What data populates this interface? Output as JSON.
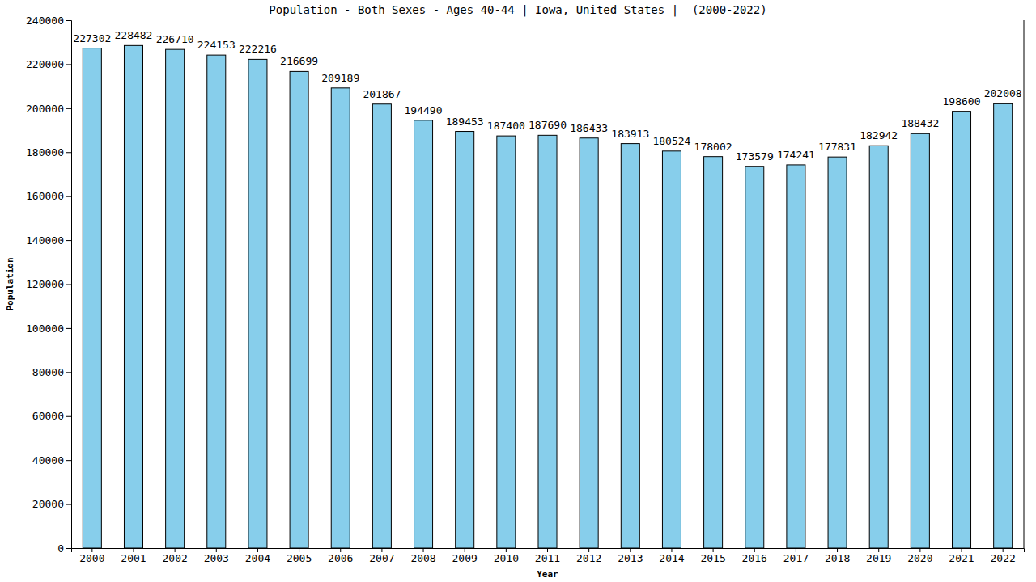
{
  "chart_data": {
    "type": "bar",
    "title": "Population - Both Sexes - Ages 40-44 | Iowa, United States |  (2000-2022)",
    "x_label": "Year",
    "y_label": "Population",
    "categories": [
      "2000",
      "2001",
      "2002",
      "2003",
      "2004",
      "2005",
      "2006",
      "2007",
      "2008",
      "2009",
      "2010",
      "2011",
      "2012",
      "2013",
      "2014",
      "2015",
      "2016",
      "2017",
      "2018",
      "2019",
      "2020",
      "2021",
      "2022"
    ],
    "values": [
      227302,
      228482,
      226710,
      224153,
      222216,
      216699,
      209189,
      201867,
      194490,
      189453,
      187400,
      187690,
      186433,
      183913,
      180524,
      178002,
      173579,
      174241,
      177831,
      182942,
      188432,
      198600,
      202008
    ],
    "color": "#87ceeb",
    "ylim": [
      0,
      240000
    ],
    "yticks": [
      0,
      20000,
      40000,
      60000,
      80000,
      100000,
      120000,
      140000,
      160000,
      180000,
      200000,
      220000,
      240000
    ],
    "grid": false,
    "data_labels": true
  }
}
